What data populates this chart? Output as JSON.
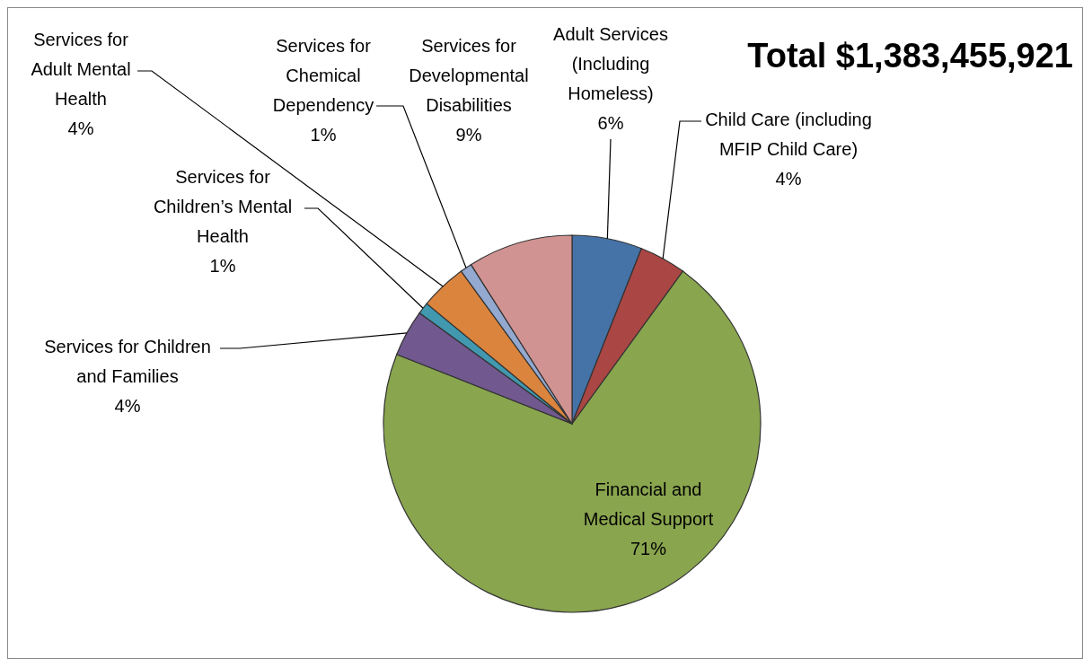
{
  "chart_data": {
    "type": "pie",
    "title": "Total $1,383,455,921",
    "categories": [
      "Adult Services (Including Homeless)",
      "Child Care (including MFIP Child Care)",
      "Financial and Medical Support",
      "Services for Children and Families",
      "Services for Children’s Mental Health",
      "Services for Adult Mental Health",
      "Services for Chemical Dependency",
      "Services for Developmental Disabilities"
    ],
    "values": [
      6,
      4,
      71,
      4,
      1,
      4,
      1,
      9
    ],
    "value_labels": [
      "6%",
      "4%",
      "71%",
      "4%",
      "1%",
      "4%",
      "1%",
      "9%"
    ],
    "colors": [
      "#4572a7",
      "#aa4643",
      "#89a54e",
      "#71588f",
      "#4198af",
      "#db843d",
      "#93a9cf",
      "#d19392"
    ],
    "legend": false
  }
}
